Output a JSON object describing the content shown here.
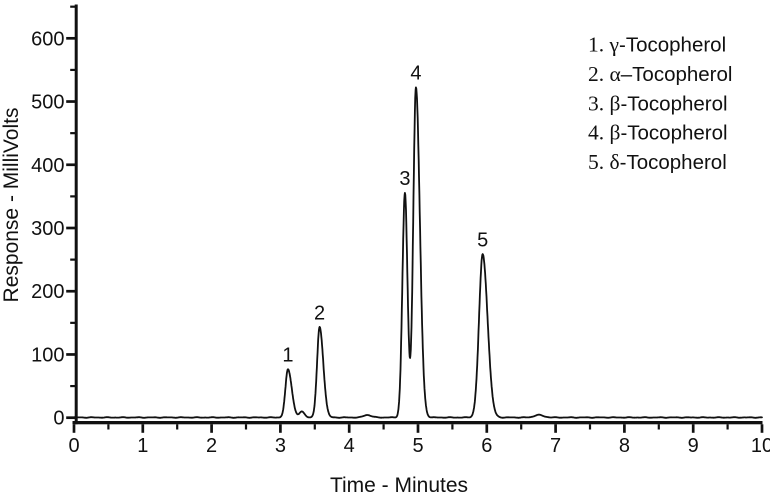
{
  "chart_data": {
    "type": "line",
    "subtype": "chromatogram",
    "title": "",
    "xlabel": "Time - Minutes",
    "ylabel": "Response - MilliVolts",
    "xlim": [
      0,
      10
    ],
    "ylim": [
      0,
      650
    ],
    "x_major_ticks": [
      0,
      1,
      2,
      3,
      4,
      5,
      6,
      7,
      8,
      9,
      10
    ],
    "x_minor_step": 0.5,
    "y_major_ticks": [
      0,
      100,
      200,
      300,
      400,
      500,
      600
    ],
    "y_minor_step": 50,
    "grid": "off",
    "legend_position": "top-right",
    "line_color": "#111111",
    "background_color": "#ffffff",
    "peaks": [
      {
        "label": "1",
        "compound": "γ-Tocopherol",
        "time_min": 3.11,
        "response_mv": 76,
        "sigma_min": 0.037,
        "tail_factor": 1.5
      },
      {
        "label": "2",
        "compound": "α–Tocopherol",
        "time_min": 3.57,
        "response_mv": 143,
        "sigma_min": 0.037,
        "tail_factor": 1.45
      },
      {
        "label": "3",
        "compound": "β-Tocopherol",
        "time_min": 4.81,
        "response_mv": 355,
        "sigma_min": 0.037,
        "tail_factor": 1.0
      },
      {
        "label": "4",
        "compound": "β-Tocopherol",
        "time_min": 4.97,
        "response_mv": 522,
        "sigma_min": 0.039,
        "tail_factor": 1.45
      },
      {
        "label": "5",
        "compound": "δ-Tocopherol",
        "time_min": 5.94,
        "response_mv": 258,
        "sigma_min": 0.053,
        "tail_factor": 1.35
      }
    ],
    "minor_features": [
      {
        "time_min": 3.31,
        "response_mv": 9,
        "sigma_min": 0.035,
        "tail_factor": 1.2
      },
      {
        "time_min": 4.26,
        "response_mv": 4,
        "sigma_min": 0.05,
        "tail_factor": 1.2
      },
      {
        "time_min": 6.75,
        "response_mv": 4,
        "sigma_min": 0.06,
        "tail_factor": 1.2
      }
    ],
    "legend": [
      {
        "label": "1. γ-Tocopherol",
        "serif": "1. γ",
        "sans": "-Tocopherol"
      },
      {
        "label": "2. α–Tocopherol",
        "serif": "2. α",
        "sans": "–Tocopherol"
      },
      {
        "label": "3. β-Tocopherol",
        "serif": "3. β",
        "sans": "-Tocopherol"
      },
      {
        "label": "4. β-Tocopherol",
        "serif": "4. β",
        "sans": "-Tocopherol"
      },
      {
        "label": "5. δ-Tocopherol",
        "serif": "5. δ",
        "sans": "-Tocopherol"
      }
    ]
  }
}
